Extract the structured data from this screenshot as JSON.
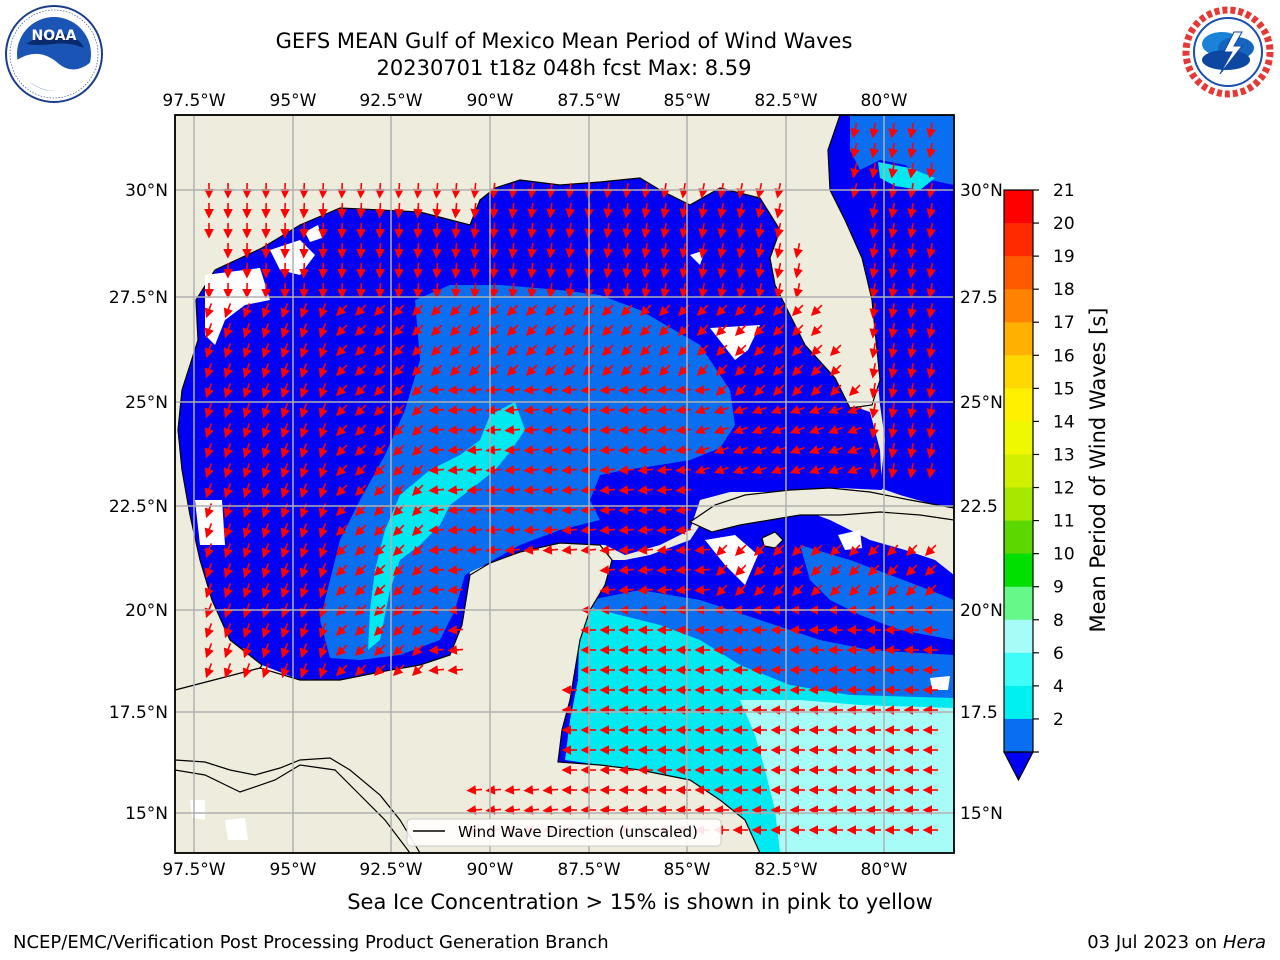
{
  "header": {
    "title_line1": "GEFS MEAN Gulf of Mexico Mean Period of Wind Waves",
    "title_line2": "20230701 t18z 048h fcst   Max: 8.59"
  },
  "logos": {
    "left": "noaa-logo",
    "left_text": "NOAA",
    "left_ring_text": "NATIONAL OCEANIC AND ATMOSPHERIC ADMINISTRATION · U.S. DEPARTMENT OF COMMERCE",
    "right": "nws-logo",
    "right_ring_text": "NATIONAL WEATHER SERVICE"
  },
  "map": {
    "lon_labels": [
      "97.5°W",
      "95°W",
      "92.5°W",
      "90°W",
      "87.5°W",
      "85°W",
      "82.5°W",
      "80°W"
    ],
    "lat_labels_left": [
      "30°N",
      "27.5°N",
      "25°N",
      "22.5°N",
      "20°N",
      "17.5°N",
      "15°N"
    ],
    "lat_labels_right": [
      "30°N",
      "27.5",
      "25°N",
      "22.5",
      "20°N",
      "17.5",
      "15°N"
    ],
    "legend_label": "Wind Wave Direction (unscaled)",
    "colors": {
      "land": "#eeecdc",
      "water_2": "#0000f5",
      "water_3": "#0a6ef0",
      "water_4": "#00e8f0",
      "water_8": "#a8fcf8",
      "arrow": "#ff0000"
    }
  },
  "colorbar": {
    "label": "Mean Period of Wind Waves [s]",
    "ticks": [
      "21",
      "20",
      "19",
      "18",
      "17",
      "16",
      "15",
      "14",
      "13",
      "12",
      "11",
      "10",
      "9",
      "8",
      "6",
      "4",
      "2"
    ],
    "colors": [
      "#ff0000",
      "#ff2a00",
      "#ff5a00",
      "#ff8200",
      "#ffb000",
      "#ffd800",
      "#fff000",
      "#f0f800",
      "#d0f000",
      "#a6e800",
      "#5cd800",
      "#00e000",
      "#66f888",
      "#a8fcf8",
      "#40fcf8",
      "#00f0f0",
      "#0a6ef0"
    ],
    "extend_color": "#0000f5"
  },
  "footer": {
    "note": "Sea Ice Concentration > 15% is shown in pink to yellow",
    "left": "NCEP/EMC/Verification Post Processing Product Generation Branch",
    "right_date": "03 Jul 2023 on",
    "right_host": "Hera"
  }
}
